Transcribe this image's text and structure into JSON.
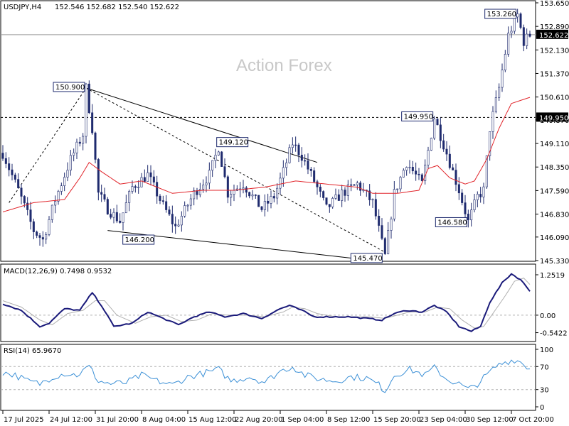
{
  "header": {
    "symbol": "USDJPY,H4",
    "ohlc": "152.546 152.682 152.540 152.622"
  },
  "watermark": "Action Forex",
  "colors": {
    "candle": "#1e2a6e",
    "ma": "#e1252b",
    "macd_line": "#1a1a7a",
    "macd_signal": "#b0b0b0",
    "rsi_line": "#3a8fd6",
    "trendline": "#000000"
  },
  "price_panel": {
    "ylim": [
      145.33,
      153.65
    ],
    "ticks": [
      "153.650",
      "152.890",
      "152.130",
      "151.370",
      "150.610",
      "149.870",
      "149.110",
      "148.350",
      "147.590",
      "146.830",
      "146.090",
      "145.330"
    ],
    "current_price": "152.622",
    "hline_price": "149.950",
    "hline_value": 149.95,
    "current_value": 152.622
  },
  "annotations": [
    {
      "label": "150.900",
      "x": 27,
      "y": 150.9
    },
    {
      "label": "146.200",
      "x": 38,
      "y": 146.2
    },
    {
      "label": "149.120",
      "x": 80,
      "y": 149.12
    },
    {
      "label": "145.470",
      "x": 124,
      "y": 145.47
    },
    {
      "label": "149.950",
      "x": 140,
      "y": 149.95
    },
    {
      "label": "146.580",
      "x": 151,
      "y": 146.58
    },
    {
      "label": "153.260",
      "x": 167,
      "y": 153.26
    }
  ],
  "macd_panel": {
    "label": "MACD(12,26,9) 0.7498 0.9532",
    "ylim": [
      -0.75,
      1.45
    ],
    "ticks": [
      "1.2519",
      "0.00",
      "-0.5422"
    ],
    "tick_values": [
      1.2519,
      0.0,
      -0.5422
    ]
  },
  "rsi_panel": {
    "label": "RSI(14) 65.9670",
    "ylim": [
      0,
      100
    ],
    "ticks": [
      "100",
      "70",
      "30",
      "0"
    ],
    "tick_values": [
      100,
      70,
      30,
      0
    ]
  },
  "x_axis": {
    "labels": [
      "17 Jul 2025",
      "24 Jul 12:00",
      "31 Jul 20:00",
      "8 Aug 04:00",
      "15 Aug 12:00",
      "22 Aug 20:00",
      "1 Sep 04:00",
      "8 Sep 12:00",
      "15 Sep 20:00",
      "23 Sep 04:00",
      "30 Sep 12:00",
      "7 Oct 20:00"
    ],
    "label_positions": [
      0,
      15,
      30,
      45,
      60,
      75,
      90,
      105,
      120,
      135,
      150,
      165
    ]
  },
  "chart_data": {
    "type": "candlestick",
    "bar_count": 172,
    "anchors": [
      [
        0,
        148.8
      ],
      [
        5,
        147.6
      ],
      [
        10,
        146.3
      ],
      [
        13,
        146.0
      ],
      [
        17,
        147.3
      ],
      [
        22,
        148.6
      ],
      [
        26,
        149.4
      ],
      [
        27,
        150.9
      ],
      [
        29,
        149.6
      ],
      [
        31,
        147.5
      ],
      [
        34,
        147.0
      ],
      [
        38,
        146.6
      ],
      [
        42,
        147.7
      ],
      [
        47,
        148.1
      ],
      [
        52,
        147.1
      ],
      [
        56,
        146.4
      ],
      [
        62,
        147.5
      ],
      [
        67,
        148.1
      ],
      [
        70,
        149.0
      ],
      [
        73,
        147.5
      ],
      [
        78,
        147.8
      ],
      [
        84,
        147.0
      ],
      [
        88,
        147.4
      ],
      [
        91,
        148.2
      ],
      [
        94,
        149.12
      ],
      [
        97,
        148.7
      ],
      [
        101,
        147.9
      ],
      [
        105,
        147.0
      ],
      [
        110,
        147.5
      ],
      [
        115,
        147.8
      ],
      [
        120,
        147.2
      ],
      [
        124,
        145.47
      ],
      [
        127,
        147.5
      ],
      [
        131,
        148.5
      ],
      [
        136,
        147.8
      ],
      [
        140,
        149.95
      ],
      [
        144,
        148.8
      ],
      [
        148,
        147.6
      ],
      [
        151,
        146.58
      ],
      [
        154,
        147.4
      ],
      [
        156,
        147.6
      ],
      [
        158,
        149.6
      ],
      [
        161,
        150.9
      ],
      [
        164,
        152.6
      ],
      [
        167,
        153.26
      ],
      [
        169,
        152.4
      ],
      [
        171,
        152.62
      ]
    ],
    "moving_average": [
      [
        0,
        146.9
      ],
      [
        10,
        147.2
      ],
      [
        20,
        147.3
      ],
      [
        25,
        148.0
      ],
      [
        28,
        148.5
      ],
      [
        32,
        148.2
      ],
      [
        38,
        147.8
      ],
      [
        45,
        147.9
      ],
      [
        55,
        147.5
      ],
      [
        65,
        147.6
      ],
      [
        75,
        147.6
      ],
      [
        85,
        147.7
      ],
      [
        95,
        147.9
      ],
      [
        105,
        147.8
      ],
      [
        115,
        147.7
      ],
      [
        120,
        147.5
      ],
      [
        128,
        147.5
      ],
      [
        135,
        147.6
      ],
      [
        138,
        148.3
      ],
      [
        141,
        148.4
      ],
      [
        145,
        148.0
      ],
      [
        150,
        147.8
      ],
      [
        153,
        147.9
      ],
      [
        157,
        148.6
      ],
      [
        161,
        149.6
      ],
      [
        165,
        150.4
      ],
      [
        171,
        150.6
      ]
    ],
    "macd": [
      [
        0,
        0.35
      ],
      [
        6,
        0.15
      ],
      [
        12,
        -0.35
      ],
      [
        15,
        -0.25
      ],
      [
        20,
        0.2
      ],
      [
        25,
        0.15
      ],
      [
        29,
        0.7
      ],
      [
        32,
        0.3
      ],
      [
        36,
        -0.35
      ],
      [
        42,
        -0.25
      ],
      [
        47,
        0.1
      ],
      [
        52,
        -0.1
      ],
      [
        57,
        -0.3
      ],
      [
        62,
        -0.05
      ],
      [
        67,
        0.1
      ],
      [
        72,
        -0.05
      ],
      [
        78,
        0.05
      ],
      [
        84,
        -0.1
      ],
      [
        90,
        0.2
      ],
      [
        93,
        0.3
      ],
      [
        97,
        0.15
      ],
      [
        101,
        -0.05
      ],
      [
        107,
        -0.05
      ],
      [
        112,
        -0.05
      ],
      [
        118,
        -0.1
      ],
      [
        123,
        -0.15
      ],
      [
        127,
        0.05
      ],
      [
        131,
        0.15
      ],
      [
        136,
        0.1
      ],
      [
        140,
        0.3
      ],
      [
        144,
        0.1
      ],
      [
        148,
        -0.35
      ],
      [
        152,
        -0.5
      ],
      [
        155,
        -0.35
      ],
      [
        158,
        0.4
      ],
      [
        162,
        1.0
      ],
      [
        165,
        1.28
      ],
      [
        168,
        1.1
      ],
      [
        171,
        0.75
      ]
    ],
    "macd_signal": [
      [
        0,
        0.45
      ],
      [
        6,
        0.25
      ],
      [
        12,
        -0.15
      ],
      [
        16,
        -0.3
      ],
      [
        21,
        0.05
      ],
      [
        26,
        0.15
      ],
      [
        30,
        0.45
      ],
      [
        33,
        0.45
      ],
      [
        37,
        0.0
      ],
      [
        43,
        -0.25
      ],
      [
        48,
        -0.05
      ],
      [
        53,
        0.0
      ],
      [
        58,
        -0.2
      ],
      [
        63,
        -0.15
      ],
      [
        68,
        0.05
      ],
      [
        73,
        0.0
      ],
      [
        79,
        0.0
      ],
      [
        85,
        -0.05
      ],
      [
        91,
        0.1
      ],
      [
        94,
        0.25
      ],
      [
        98,
        0.2
      ],
      [
        102,
        0.05
      ],
      [
        108,
        -0.05
      ],
      [
        113,
        -0.05
      ],
      [
        119,
        -0.05
      ],
      [
        124,
        -0.1
      ],
      [
        128,
        0.0
      ],
      [
        132,
        0.1
      ],
      [
        137,
        0.1
      ],
      [
        141,
        0.25
      ],
      [
        145,
        0.2
      ],
      [
        149,
        -0.15
      ],
      [
        153,
        -0.4
      ],
      [
        156,
        -0.35
      ],
      [
        159,
        0.05
      ],
      [
        163,
        0.6
      ],
      [
        166,
        1.05
      ],
      [
        169,
        1.15
      ],
      [
        171,
        0.95
      ]
    ],
    "rsi": [
      [
        0,
        60
      ],
      [
        4,
        55
      ],
      [
        8,
        45
      ],
      [
        12,
        40
      ],
      [
        16,
        52
      ],
      [
        20,
        58
      ],
      [
        24,
        55
      ],
      [
        28,
        70
      ],
      [
        31,
        45
      ],
      [
        35,
        40
      ],
      [
        40,
        42
      ],
      [
        45,
        55
      ],
      [
        50,
        45
      ],
      [
        55,
        38
      ],
      [
        60,
        52
      ],
      [
        65,
        58
      ],
      [
        70,
        65
      ],
      [
        74,
        45
      ],
      [
        80,
        52
      ],
      [
        85,
        43
      ],
      [
        90,
        62
      ],
      [
        94,
        70
      ],
      [
        98,
        55
      ],
      [
        103,
        48
      ],
      [
        108,
        45
      ],
      [
        113,
        52
      ],
      [
        118,
        50
      ],
      [
        122,
        38
      ],
      [
        124,
        28
      ],
      [
        127,
        55
      ],
      [
        132,
        65
      ],
      [
        137,
        55
      ],
      [
        140,
        68
      ],
      [
        144,
        48
      ],
      [
        148,
        40
      ],
      [
        151,
        30
      ],
      [
        154,
        40
      ],
      [
        157,
        55
      ],
      [
        160,
        70
      ],
      [
        163,
        78
      ],
      [
        166,
        82
      ],
      [
        168,
        78
      ],
      [
        171,
        66
      ]
    ],
    "trendlines": [
      {
        "style": "solid",
        "from": [
          27,
          150.9
        ],
        "to": [
          102,
          148.5
        ]
      },
      {
        "style": "solid",
        "from": [
          34,
          146.3
        ],
        "to": [
          114,
          145.4
        ]
      },
      {
        "style": "dashed",
        "from": [
          27,
          150.9
        ],
        "to": [
          124,
          145.6
        ]
      },
      {
        "style": "dashed",
        "from": [
          2,
          147.2
        ],
        "to": [
          27,
          150.9
        ]
      }
    ]
  }
}
